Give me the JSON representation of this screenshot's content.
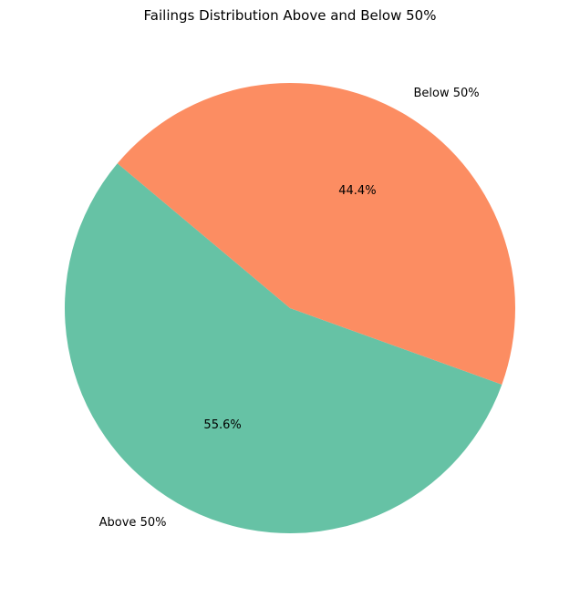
{
  "chart_data": {
    "type": "pie",
    "title": "Failings Distribution Above and Below 50%",
    "categories": [
      "Above 50%",
      "Below 50%"
    ],
    "values": [
      55.6,
      44.4
    ],
    "percent_labels": [
      "55.6%",
      "44.4%"
    ],
    "colors": [
      "#66c2a5",
      "#fc8d62"
    ],
    "start_angle_deg": 140,
    "direction": "counterclockwise",
    "legend": "none"
  }
}
